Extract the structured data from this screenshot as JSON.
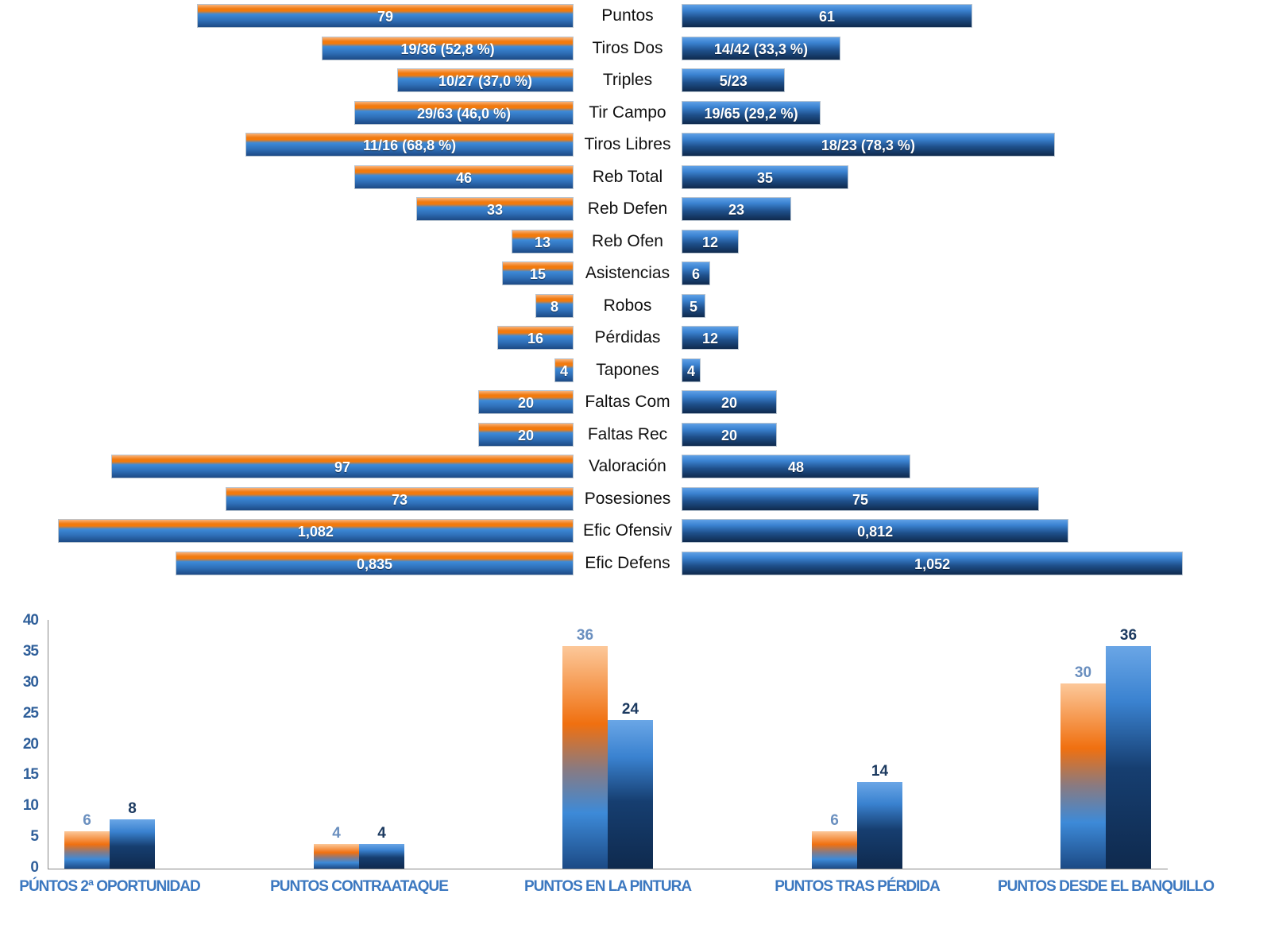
{
  "chart_data": [
    {
      "type": "bar",
      "orientation": "horizontal-diverging",
      "categories": [
        "Puntos",
        "Tiros Dos",
        "Triples",
        "Tir Campo",
        "Tiros Libres",
        "Reb Total",
        "Reb Defen",
        "Reb Ofen",
        "Asistencias",
        "Robos",
        "Pérdidas",
        "Tapones",
        "Faltas Com",
        "Faltas Rec",
        "Valoración",
        "Posesiones",
        "Efic Ofensiv",
        "Efic Defens"
      ],
      "series": [
        {
          "side": "left",
          "color": "#f07a10",
          "values": [
            "79",
            "19/36 (52,8 %)",
            "10/27 (37,0 %)",
            "29/63 (46,0 %)",
            "11/16 (68,8 %)",
            "46",
            "33",
            "13",
            "15",
            "8",
            "16",
            "4",
            "20",
            "20",
            "97",
            "73",
            "1,082",
            "0,835"
          ]
        },
        {
          "side": "right",
          "color": "#1e4f8a",
          "values": [
            "61",
            "14/42 (33,3 %)",
            "5/23",
            "19/65 (29,2 %)",
            "18/23 (78,3 %)",
            "35",
            "23",
            "12",
            "6",
            "5",
            "12",
            "4",
            "20",
            "20",
            "48",
            "75",
            "0,812",
            "1,052"
          ]
        }
      ]
    },
    {
      "type": "bar",
      "categories": [
        "PÚNTOS 2ª OPORTUNIDAD",
        "PUNTOS CONTRAATAQUE",
        "PUNTOS EN LA PINTURA",
        "PUNTOS TRAS PÉRDIDA",
        "PUNTOS DESDE EL BANQUILLO"
      ],
      "series": [
        {
          "color": "#f07010",
          "values": [
            6,
            4,
            36,
            6,
            30
          ]
        },
        {
          "color": "#163e70",
          "values": [
            8,
            4,
            24,
            14,
            36
          ]
        }
      ],
      "ylim": [
        0,
        40
      ],
      "yticks": [
        "0",
        "5",
        "10",
        "15",
        "20",
        "25",
        "30",
        "35",
        "40"
      ],
      "grid": false
    }
  ]
}
